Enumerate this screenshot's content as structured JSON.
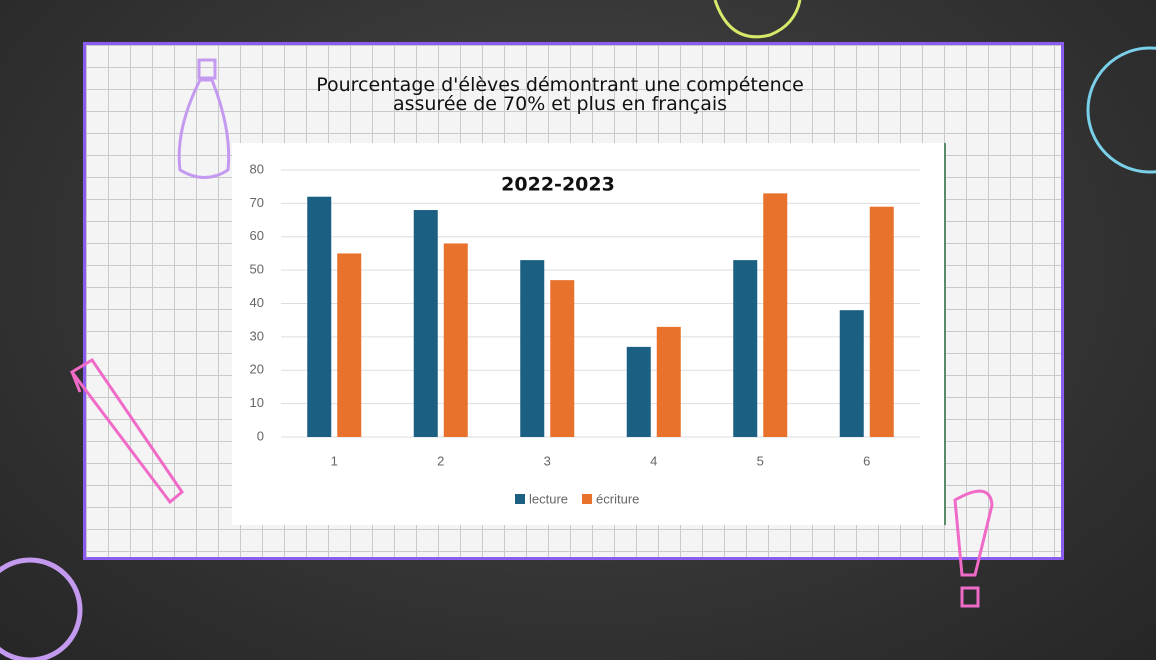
{
  "chart_data": {
    "type": "bar",
    "title": "Pourcentage d'élèves démontrant une compétence assurée de 70% et plus en français",
    "subtitle": "2022-2023",
    "categories": [
      "1",
      "2",
      "3",
      "4",
      "5",
      "6"
    ],
    "series": [
      {
        "name": "lecture",
        "color": "#1b5f82",
        "values": [
          72,
          68,
          53,
          27,
          53,
          38
        ]
      },
      {
        "name": "écriture",
        "color": "#e8712b",
        "values": [
          55,
          58,
          47,
          33,
          73,
          69
        ]
      }
    ],
    "ylim": [
      0,
      80
    ],
    "yticks": [
      0,
      10,
      20,
      30,
      40,
      50,
      60,
      70,
      80
    ],
    "grid": true,
    "legend": "bottom"
  }
}
